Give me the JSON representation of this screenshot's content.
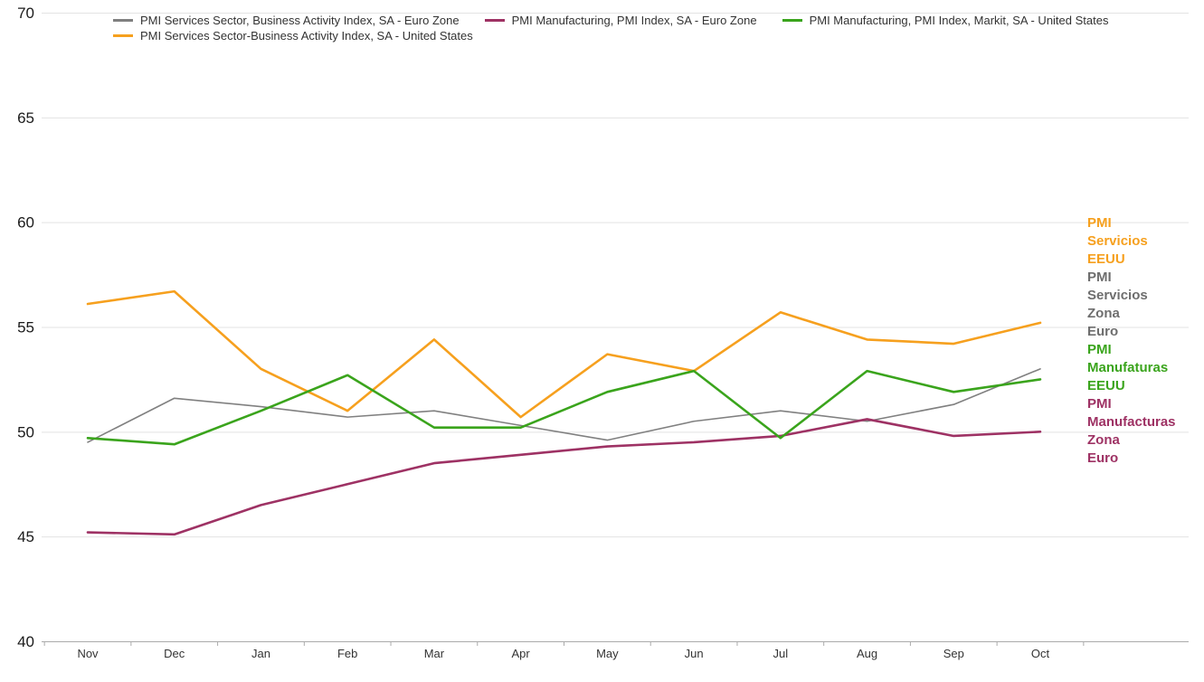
{
  "chart_data": {
    "type": "line",
    "categories": [
      "Nov",
      "Dec",
      "Jan",
      "Feb",
      "Mar",
      "Apr",
      "May",
      "Jun",
      "Jul",
      "Aug",
      "Sep",
      "Oct"
    ],
    "series": [
      {
        "name": "PMI Services Sector, Business Activity Index, SA - Euro Zone",
        "color": "#808080",
        "stroke_width": 1.6,
        "z": 0,
        "values": [
          49.5,
          51.6,
          51.2,
          50.7,
          51.0,
          50.3,
          49.6,
          50.5,
          51.0,
          50.5,
          51.3,
          53.0
        ]
      },
      {
        "name": "PMI Manufacturing, PMI Index, SA - Euro Zone",
        "color": "#9E3264",
        "stroke_width": 2.6,
        "z": 2,
        "values": [
          45.2,
          45.1,
          46.5,
          47.5,
          48.5,
          48.9,
          49.3,
          49.5,
          49.8,
          50.6,
          49.8,
          50.0
        ]
      },
      {
        "name": "PMI Manufacturing, PMI Index, Markit, SA - United States",
        "color": "#3AA41C",
        "stroke_width": 2.6,
        "z": 3,
        "values": [
          49.7,
          49.4,
          51.0,
          52.7,
          50.2,
          50.2,
          51.9,
          52.9,
          49.7,
          52.9,
          51.9,
          52.5
        ]
      },
      {
        "name": "PMI Services Sector-Business Activity Index, SA - United States",
        "color": "#F6A01E",
        "stroke_width": 2.6,
        "z": 1,
        "values": [
          56.1,
          56.7,
          53.0,
          51.0,
          54.4,
          50.7,
          53.7,
          52.9,
          55.7,
          54.4,
          54.2,
          55.2
        ]
      }
    ],
    "title": "",
    "xlabel": "",
    "ylabel": "",
    "ylim": [
      40,
      70
    ],
    "yticks": [
      40,
      45,
      50,
      55,
      60,
      65,
      70
    ],
    "grid": true,
    "legend_position": "top"
  },
  "right_labels": [
    {
      "text": "PMI Servicios EEUU",
      "color": "#F6A01E"
    },
    {
      "text": "PMI Servicios Zona Euro",
      "color": "#6E6E6E"
    },
    {
      "text": "PMI Manufaturas EEUU",
      "color": "#3AA41C"
    },
    {
      "text": "PMI Manufacturas Zona Euro",
      "color": "#9E3264"
    }
  ],
  "axis_colors": {
    "gridline": "#e3e3e3",
    "axis_line": "#ababab",
    "tick": "#ababab",
    "y_label_color": "#1a1a1a",
    "x_label_color": "#333333"
  }
}
